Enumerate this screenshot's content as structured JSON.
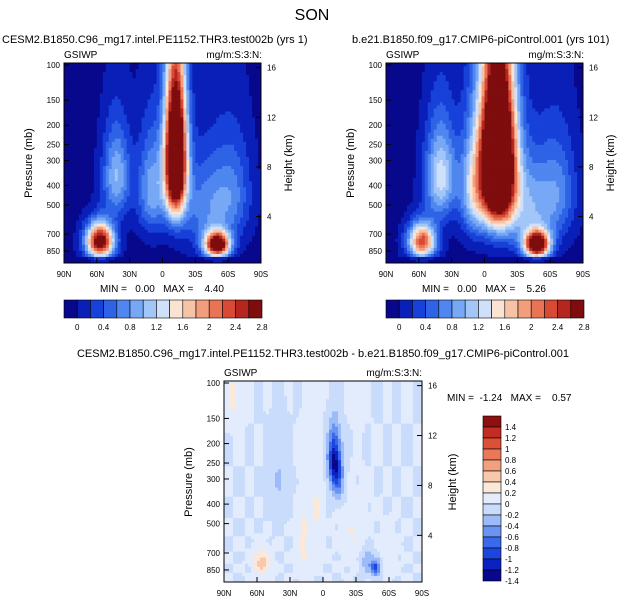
{
  "page_title": "SON",
  "colors": {
    "scale": [
      "#08088c",
      "#0a1fb8",
      "#1741d8",
      "#2f63e6",
      "#4f86ef",
      "#77a8f5",
      "#a3c6f9",
      "#cfe0fb",
      "#fbe3d2",
      "#f7c3a6",
      "#f29d7c",
      "#e97355",
      "#d94a36",
      "#b5261f",
      "#7f0d0d"
    ],
    "diffscale": [
      "#08088c",
      "#0b22c2",
      "#1c44de",
      "#3a6aea",
      "#6a93f2",
      "#9dbbf8",
      "#cadcfb",
      "#e2ecfd",
      "#fbe8d8",
      "#f7c8ac",
      "#f2a07e",
      "#e97858",
      "#dd5038",
      "#c42b21",
      "#8e0f0f"
    ]
  },
  "chart_data": [
    {
      "type": "heatmap",
      "id": "p1",
      "title": "CESM2.B1850.C96_mg17.intel.PE1152.THR3.test002b (yrs 1)",
      "left_label": "GSIWP",
      "right_label": "mg/m:S:3:N:",
      "ylabel": "Pressure (mb)",
      "y2label": "Height (km)",
      "xticks": [
        "90N",
        "60N",
        "30N",
        "0",
        "30S",
        "60S",
        "90S"
      ],
      "yticks": [
        "100",
        "150",
        "200",
        "250",
        "300",
        "400",
        "500",
        "700",
        "850"
      ],
      "y2ticks": [
        "16",
        "12",
        "8",
        "4"
      ],
      "stats": "MIN =   0.00   MAX =    4.40",
      "colorbar_labels": [
        "0",
        "0.4",
        "0.8",
        "1.2",
        "1.6",
        "2",
        "2.4",
        "2.8"
      ],
      "blobs": [
        {
          "lat": -12,
          "p": 290,
          "v": 4.4,
          "sx": 7,
          "sy": 170
        },
        {
          "lat": 57,
          "p": 760,
          "v": 3.1,
          "sx": 9,
          "sy": 110
        },
        {
          "lat": -50,
          "p": 790,
          "v": 3.3,
          "sx": 8,
          "sy": 80
        },
        {
          "lat": 42,
          "p": 360,
          "v": 1.1,
          "sx": 9,
          "sy": 130
        },
        {
          "lat": 10,
          "p": 420,
          "v": 1.0,
          "sx": 9,
          "sy": 170
        },
        {
          "lat": -42,
          "p": 520,
          "v": 0.8,
          "sx": 18,
          "sy": 200
        },
        {
          "lat": -65,
          "p": 420,
          "v": 0.5,
          "sx": 12,
          "sy": 180
        }
      ]
    },
    {
      "type": "heatmap",
      "id": "p2",
      "title": "b.e21.B1850.f09_g17.CMIP6-piControl.001 (yrs 101)",
      "left_label": "GSIWP",
      "right_label": "mg/m:S:3:N:",
      "ylabel": "Pressure (mb)",
      "y2label": "Height (km)",
      "xticks": [
        "90N",
        "60N",
        "30N",
        "0",
        "30S",
        "60S",
        "90S"
      ],
      "yticks": [
        "100",
        "150",
        "200",
        "250",
        "300",
        "400",
        "500",
        "700",
        "850"
      ],
      "y2ticks": [
        "16",
        "12",
        "8",
        "4"
      ],
      "stats": "MIN =   0.00   MAX =    5.26",
      "colorbar_labels": [
        "0",
        "0.4",
        "0.8",
        "1.2",
        "1.6",
        "2",
        "2.4",
        "2.8"
      ],
      "blobs": [
        {
          "lat": -12,
          "p": 300,
          "v": 5.2,
          "sx": 11,
          "sy": 200
        },
        {
          "lat": 57,
          "p": 760,
          "v": 2.4,
          "sx": 9,
          "sy": 110
        },
        {
          "lat": -48,
          "p": 790,
          "v": 3.4,
          "sx": 8,
          "sy": 85
        },
        {
          "lat": 40,
          "p": 360,
          "v": 1.4,
          "sx": 10,
          "sy": 140
        },
        {
          "lat": 10,
          "p": 420,
          "v": 1.2,
          "sx": 9,
          "sy": 180
        },
        {
          "lat": -40,
          "p": 520,
          "v": 1.0,
          "sx": 18,
          "sy": 200
        },
        {
          "lat": -68,
          "p": 420,
          "v": 0.6,
          "sx": 12,
          "sy": 180
        }
      ]
    },
    {
      "type": "heatmap",
      "id": "p3",
      "title": "CESM2.B1850.C96_mg17.intel.PE1152.THR3.test002b - b.e21.B1850.f09_g17.CMIP6-piControl.001",
      "left_label": "GSIWP",
      "right_label": "mg/m:S:3:N:",
      "ylabel": "Pressure (mb)",
      "y2label": "Height (km)",
      "xticks": [
        "90N",
        "60N",
        "30N",
        "0",
        "30S",
        "60S",
        "90S"
      ],
      "yticks": [
        "100",
        "150",
        "200",
        "250",
        "300",
        "400",
        "500",
        "700",
        "850"
      ],
      "y2ticks": [
        "16",
        "12",
        "8",
        "4"
      ],
      "stats": "MIN =  -1.24   MAX =    0.57",
      "colorbar_labels": [
        "1.4",
        "1.2",
        "1",
        "0.8",
        "0.6",
        "0.4",
        "0.2",
        "0",
        "-0.2",
        "-0.4",
        "-0.6",
        "-0.8",
        "-1",
        "-1.2",
        "-1.4"
      ],
      "blobs": [
        {
          "lat": -10,
          "p": 240,
          "v": -1.1,
          "sx": 4,
          "sy": 55
        },
        {
          "lat": -14,
          "p": 300,
          "v": -0.5,
          "sx": 4,
          "sy": 60
        },
        {
          "lat": 56,
          "p": 780,
          "v": 0.5,
          "sx": 5,
          "sy": 80
        },
        {
          "lat": -48,
          "p": 830,
          "v": -0.9,
          "sx": 3,
          "sy": 50
        },
        {
          "lat": -40,
          "p": 760,
          "v": -0.4,
          "sx": 4,
          "sy": 80
        },
        {
          "lat": 18,
          "p": 620,
          "v": 0.25,
          "sx": 4,
          "sy": 220
        },
        {
          "lat": 6,
          "p": 450,
          "v": 0.22,
          "sx": 4,
          "sy": 200
        },
        {
          "lat": 80,
          "p": 120,
          "v": 0.25,
          "sx": 5,
          "sy": 30
        },
        {
          "lat": -32,
          "p": 120,
          "v": 0.22,
          "sx": 3,
          "sy": 25
        },
        {
          "lat": -28,
          "p": 560,
          "v": 0.2,
          "sx": 8,
          "sy": 140
        },
        {
          "lat": 40,
          "p": 300,
          "v": -0.2,
          "sx": 6,
          "sy": 100
        },
        {
          "lat": -60,
          "p": 700,
          "v": 0.15,
          "sx": 5,
          "sy": 120
        }
      ]
    }
  ]
}
